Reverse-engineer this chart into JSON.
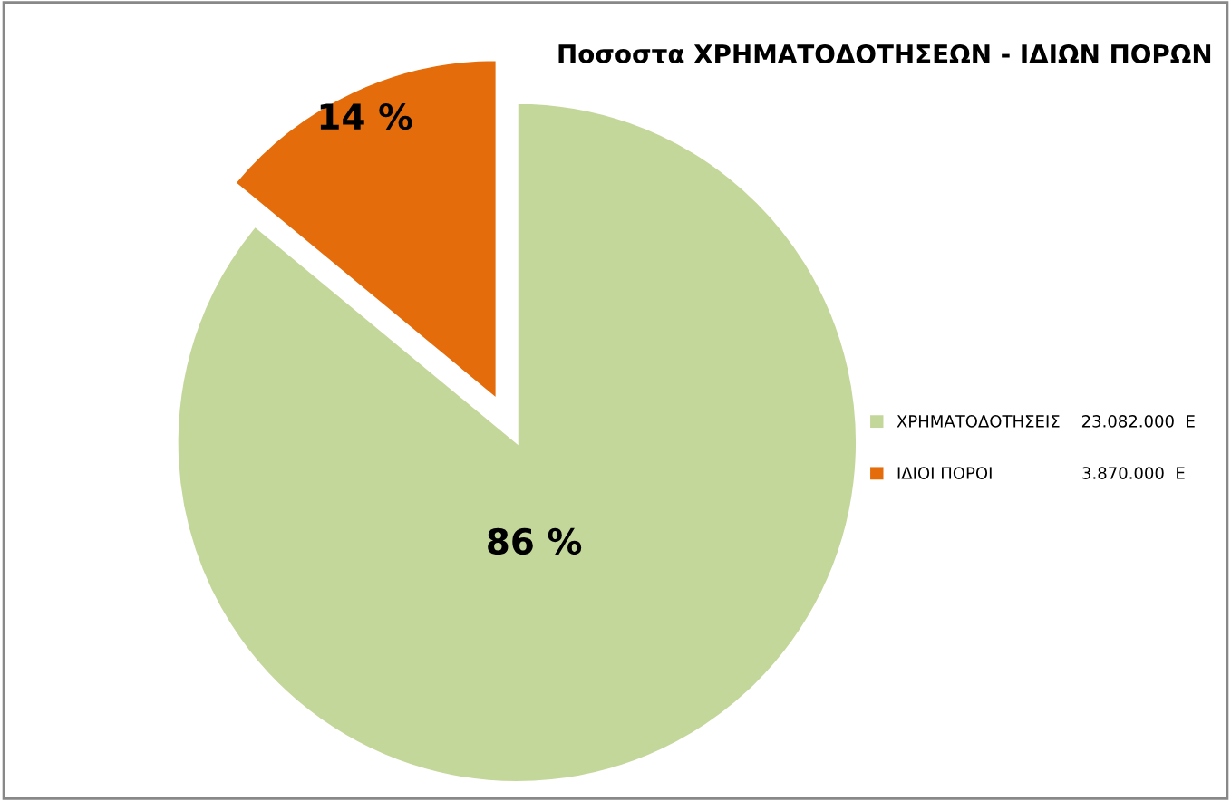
{
  "chart_data": {
    "type": "pie",
    "title": "Ποσοστα ΧΡΗΜΑΤΟΔΟΤΗΣΕΩΝ - ΙΔΙΩΝ ΠΟΡΩΝ",
    "categories": [
      "ΧΡΗΜΑΤΟΔΟΤΗΣΕΙΣ    23.082.000  Ε",
      "ΙΔΙΟΙ ΠΟΡΟΙ                 3.870.000  Ε"
    ],
    "values": [
      86,
      14
    ],
    "value_labels": [
      "86 %",
      "14 %"
    ],
    "colors": [
      "#c4d79b",
      "#e46c0a"
    ],
    "legend": "right"
  }
}
